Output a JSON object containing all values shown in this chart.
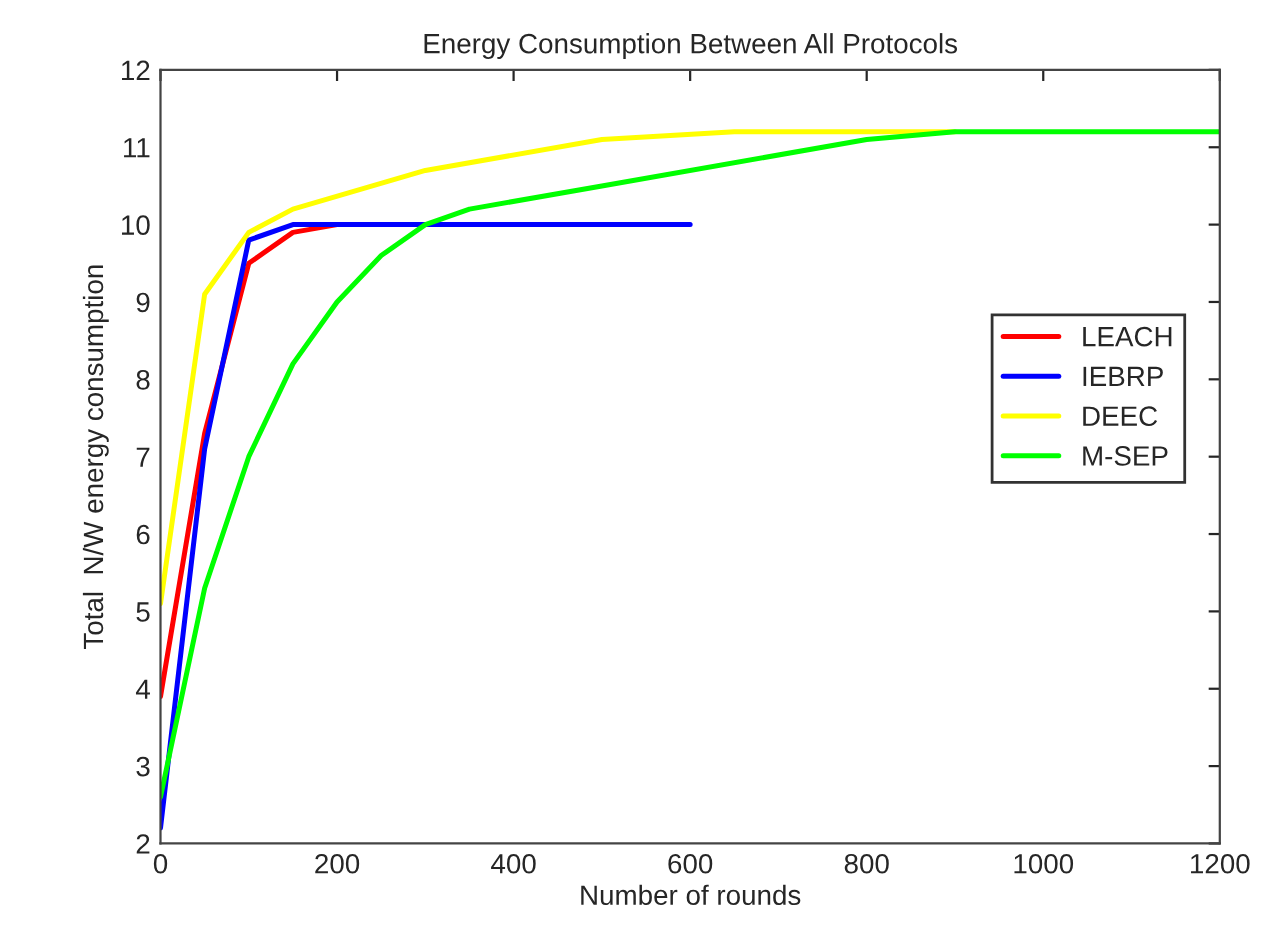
{
  "chart_data": {
    "type": "line",
    "title": "Energy Consumption Between All Protocols",
    "xlabel": "Number of rounds",
    "ylabel": "Total  N/W energy consumption",
    "xlim": [
      0,
      1200
    ],
    "ylim": [
      2,
      12
    ],
    "xticks": [
      0,
      200,
      400,
      600,
      800,
      1000,
      1200
    ],
    "yticks": [
      2,
      3,
      4,
      5,
      6,
      7,
      8,
      9,
      10,
      11,
      12
    ],
    "grid": false,
    "legend": "center right",
    "marker": "none",
    "line_style": "solid",
    "series": [
      {
        "name": "LEACH",
        "color": "#ff0000",
        "x": [
          0,
          50,
          100,
          150,
          200
        ],
        "values": [
          3.9,
          7.3,
          9.5,
          9.9,
          10
        ]
      },
      {
        "name": "IEBRP",
        "color": "#0000ff",
        "x": [
          0,
          50,
          100,
          150,
          600
        ],
        "values": [
          2.2,
          7.1,
          9.8,
          10,
          10
        ]
      },
      {
        "name": "DEEC",
        "color": "#ffff00",
        "x": [
          0,
          50,
          100,
          150,
          300,
          500,
          650,
          900
        ],
        "values": [
          5.1,
          9.1,
          9.9,
          10.2,
          10.7,
          11.1,
          11.2,
          11.2
        ]
      },
      {
        "name": "M-SEP",
        "color": "#00ff00",
        "x": [
          0,
          50,
          100,
          150,
          200,
          250,
          300,
          350,
          500,
          800,
          900,
          1200
        ],
        "values": [
          2.6,
          5.3,
          7.0,
          8.2,
          9.0,
          9.6,
          10.0,
          10.2,
          10.5,
          11.1,
          11.2,
          11.2
        ]
      }
    ]
  }
}
